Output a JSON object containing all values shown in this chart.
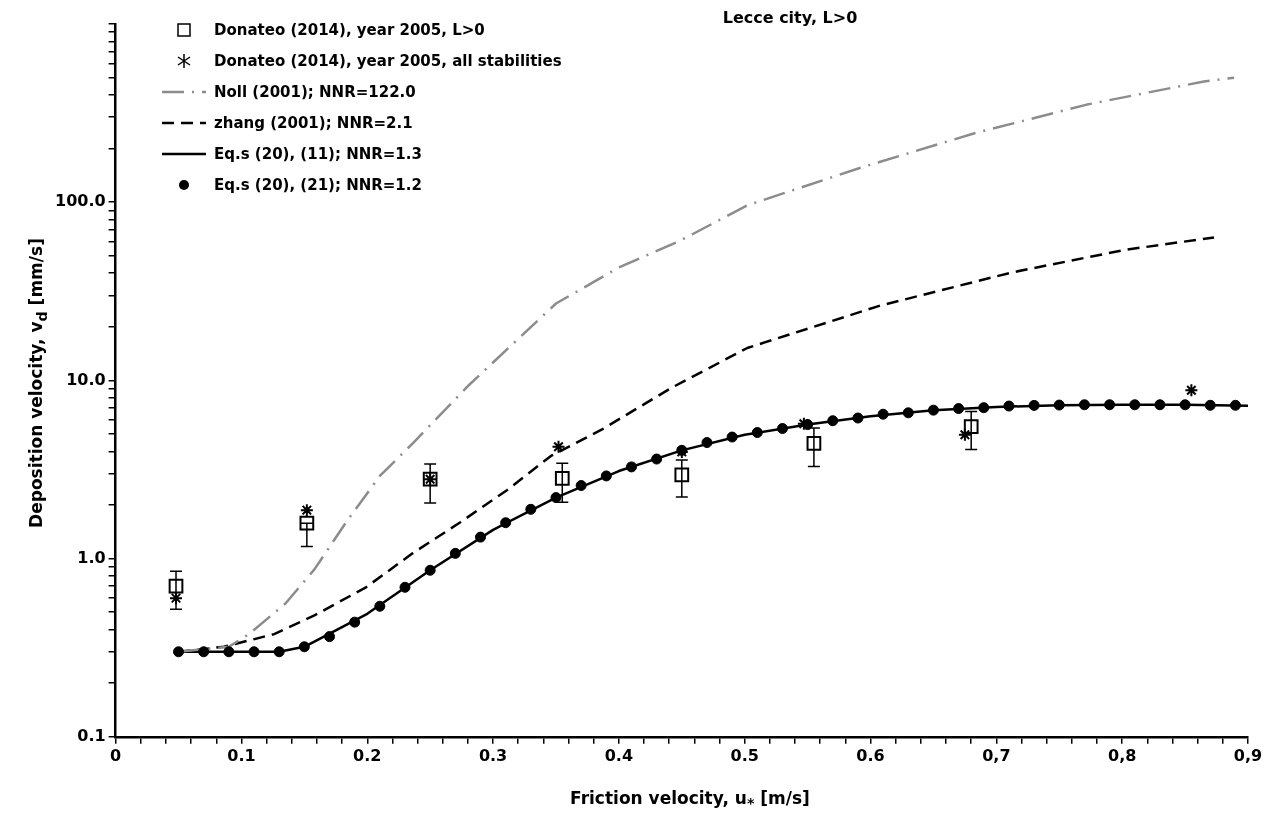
{
  "chart_data": {
    "type": "scatter",
    "title": "Lecce city, L>0",
    "xlabel": "Friction velocity, u$_{*}$  [m/s]",
    "ylabel": "Deposition velocity, v$_{d}$ [mm/s]",
    "log": "y",
    "grid": false,
    "legend": "top left",
    "xlim": [
      0,
      0.9
    ],
    "xticks": [
      0,
      {
        "value": 0.02,
        "label": null
      },
      {
        "value": 0.04,
        "label": null
      },
      {
        "value": 0.06,
        "label": null
      },
      {
        "value": 0.08,
        "label": null
      },
      0.1,
      {
        "value": 0.12,
        "label": null
      },
      {
        "value": 0.14,
        "label": null
      },
      {
        "value": 0.16,
        "label": null
      },
      {
        "value": 0.18,
        "label": null
      },
      0.2,
      {
        "value": 0.22,
        "label": null
      },
      {
        "value": 0.24,
        "label": null
      },
      {
        "value": 0.26,
        "label": null
      },
      {
        "value": 0.28,
        "label": null
      },
      0.3,
      {
        "value": 0.32,
        "label": null
      },
      {
        "value": 0.34,
        "label": null
      },
      {
        "value": 0.36,
        "label": null
      },
      {
        "value": 0.38,
        "label": null
      },
      0.4,
      {
        "value": 0.42,
        "label": null
      },
      {
        "value": 0.44,
        "label": null
      },
      {
        "value": 0.46,
        "label": null
      },
      {
        "value": 0.48,
        "label": null
      },
      0.5,
      {
        "value": 0.52,
        "label": null
      },
      {
        "value": 0.54,
        "label": null
      },
      {
        "value": 0.56,
        "label": null
      },
      {
        "value": 0.58,
        "label": null
      },
      0.6,
      {
        "value": 0.62,
        "label": null
      },
      {
        "value": 0.64,
        "label": null
      },
      {
        "value": 0.66,
        "label": null
      },
      {
        "value": 0.68,
        "label": null
      },
      {
        "value": 0.7,
        "label": "0,7"
      },
      {
        "value": 0.72,
        "label": null
      },
      {
        "value": 0.74,
        "label": null
      },
      {
        "value": 0.76,
        "label": null
      },
      {
        "value": 0.78,
        "label": null
      },
      {
        "value": 0.8,
        "label": "0,8"
      },
      {
        "value": 0.82,
        "label": null
      },
      {
        "value": 0.84,
        "label": null
      },
      {
        "value": 0.86,
        "label": null
      },
      {
        "value": 0.88,
        "label": null
      },
      {
        "value": 0.9,
        "label": "0,9"
      }
    ],
    "ylim": [
      0.1,
      1000
    ],
    "yticks": [
      0.1,
      {
        "value": 0.2,
        "label": null
      },
      {
        "value": 0.3,
        "label": null
      },
      {
        "value": 0.4,
        "label": null
      },
      {
        "value": 0.5,
        "label": null
      },
      {
        "value": 0.6,
        "label": null
      },
      {
        "value": 0.7,
        "label": null
      },
      {
        "value": 0.8,
        "label": null
      },
      {
        "value": 0.9,
        "label": null
      },
      {
        "value": 1,
        "label": "1.0"
      },
      {
        "value": 2,
        "label": null
      },
      {
        "value": 3,
        "label": null
      },
      {
        "value": 4,
        "label": null
      },
      {
        "value": 5,
        "label": null
      },
      {
        "value": 6,
        "label": null
      },
      {
        "value": 7,
        "label": null
      },
      {
        "value": 8,
        "label": null
      },
      {
        "value": 9,
        "label": null
      },
      {
        "value": 10,
        "label": "10.0"
      },
      {
        "value": 20,
        "label": null
      },
      {
        "value": 30,
        "label": null
      },
      {
        "value": 40,
        "label": null
      },
      {
        "value": 50,
        "label": null
      },
      {
        "value": 60,
        "label": null
      },
      {
        "value": 70,
        "label": null
      },
      {
        "value": 80,
        "label": null
      },
      {
        "value": 90,
        "label": null
      },
      {
        "value": 100,
        "label": "100.0"
      },
      {
        "value": 200,
        "label": null
      },
      {
        "value": 300,
        "label": null
      },
      {
        "value": 400,
        "label": null
      },
      {
        "value": 500,
        "label": null
      },
      {
        "value": 600,
        "label": null
      },
      {
        "value": 700,
        "label": null
      },
      {
        "value": 800,
        "label": null
      },
      {
        "value": 900,
        "label": null
      },
      {
        "value": 1000,
        "label": null
      }
    ],
    "series": [
      {
        "name": "Donateo (2014),  year 2005, L>0",
        "type": "scatter",
        "marker": "square",
        "color": "#000000",
        "x": [
          0.048,
          0.152,
          0.25,
          0.355,
          0.45,
          0.555,
          0.68
        ],
        "values": [
          0.7,
          1.58,
          2.79,
          2.82,
          2.95,
          4.43,
          5.5
        ],
        "errors": [
          [
            0.52,
            0.85
          ],
          [
            1.17,
            1.58
          ],
          [
            2.05,
            3.4
          ],
          [
            2.07,
            3.43
          ],
          [
            2.22,
            3.57
          ],
          [
            3.29,
            5.4
          ],
          [
            4.1,
            6.7
          ]
        ]
      },
      {
        "name": "Donateo (2014),  year 2005, all stabilities",
        "type": "scatter",
        "marker": "cross",
        "color": "#000000",
        "x": [
          0.048,
          0.152,
          0.25,
          0.352,
          0.45,
          0.547,
          0.675,
          0.855
        ],
        "values": [
          0.6,
          1.87,
          2.79,
          4.24,
          3.97,
          5.71,
          4.95,
          8.8
        ]
      },
      {
        "name": "Noll (2001); NNR=122.0",
        "type": "line",
        "marker": "none",
        "line_style": "dashdot",
        "color": "#8c8c8c",
        "x": [
          0.05,
          0.09,
          0.106,
          0.135,
          0.158,
          0.184,
          0.21,
          0.236,
          0.28,
          0.35,
          0.4,
          0.449,
          0.502,
          0.592,
          0.682,
          0.772,
          0.865,
          0.889
        ],
        "values": [
          0.3,
          0.32,
          0.377,
          0.56,
          0.87,
          1.63,
          2.91,
          4.42,
          9.3,
          27,
          43,
          61,
          96,
          156,
          243,
          353,
          476,
          500
        ]
      },
      {
        "name": "zhang (2001); NNR=2.1",
        "type": "line",
        "marker": "none",
        "line_style": "dashed",
        "color": "#000000",
        "x": [
          0.05,
          0.086,
          0.126,
          0.158,
          0.199,
          0.236,
          0.274,
          0.311,
          0.346,
          0.387,
          0.442,
          0.502,
          0.607,
          0.712,
          0.802,
          0.873
        ],
        "values": [
          0.3,
          0.32,
          0.377,
          0.48,
          0.69,
          1.07,
          1.6,
          2.42,
          3.77,
          5.33,
          9.1,
          15.2,
          26.2,
          40.3,
          54,
          63.4
        ]
      },
      {
        "name": "Eq.s (20), (11); NNR=1.3",
        "type": "line",
        "marker": "none",
        "line_style": "solid",
        "color": "#000000",
        "x": [
          0.05,
          0.1,
          0.13,
          0.15,
          0.2,
          0.25,
          0.3,
          0.35,
          0.4,
          0.45,
          0.5,
          0.55,
          0.6,
          0.65,
          0.7,
          0.75,
          0.8,
          0.85,
          0.9
        ],
        "values": [
          0.3,
          0.3,
          0.3,
          0.32,
          0.49,
          0.86,
          1.45,
          2.2,
          3.1,
          4.05,
          4.95,
          5.65,
          6.3,
          6.8,
          7.1,
          7.25,
          7.3,
          7.3,
          7.2
        ]
      },
      {
        "name": "Eq.s (20), (21); NNR=1.2",
        "type": "scatter",
        "marker": "circle",
        "color": "#000000",
        "x": [
          0.05,
          0.07,
          0.09,
          0.11,
          0.13,
          0.15,
          0.17,
          0.19,
          0.21,
          0.23,
          0.25,
          0.27,
          0.29,
          0.31,
          0.33,
          0.35,
          0.37,
          0.39,
          0.41,
          0.43,
          0.45,
          0.47,
          0.49,
          0.51,
          0.53,
          0.55,
          0.57,
          0.59,
          0.61,
          0.63,
          0.65,
          0.67,
          0.69,
          0.71,
          0.73,
          0.75,
          0.77,
          0.79,
          0.81,
          0.83,
          0.85,
          0.87,
          0.89
        ],
        "values": [
          0.3,
          0.3,
          0.3,
          0.3,
          0.3,
          0.32,
          0.365,
          0.44,
          0.54,
          0.69,
          0.86,
          1.07,
          1.32,
          1.59,
          1.89,
          2.2,
          2.57,
          2.91,
          3.27,
          3.62,
          4.05,
          4.48,
          4.81,
          5.1,
          5.37,
          5.65,
          5.94,
          6.15,
          6.46,
          6.58,
          6.81,
          6.95,
          7.03,
          7.18,
          7.24,
          7.27,
          7.3,
          7.3,
          7.3,
          7.3,
          7.3,
          7.25,
          7.25
        ]
      }
    ]
  }
}
